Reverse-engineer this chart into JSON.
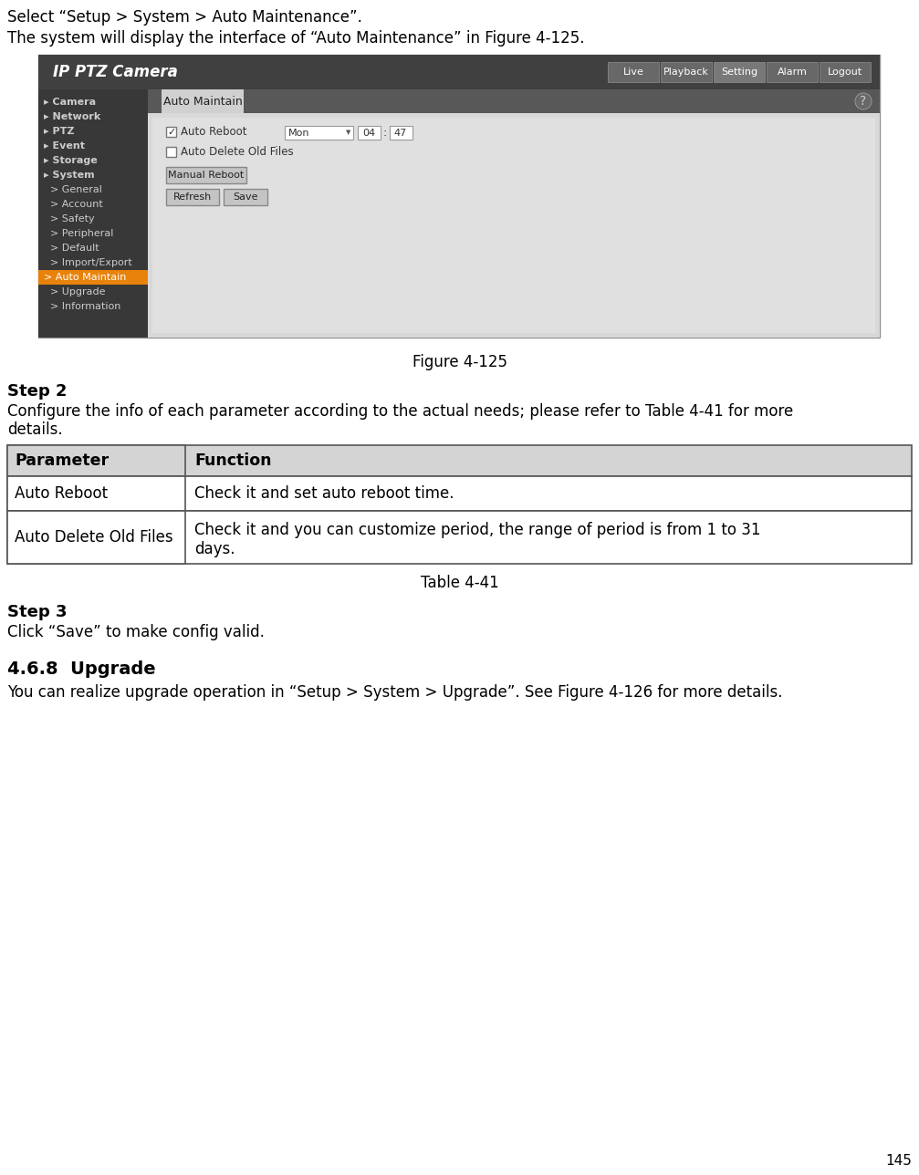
{
  "page_number": "145",
  "bg_color": "#ffffff",
  "line1": "Select “Setup > System > Auto Maintenance”.",
  "line2": "The system will display the interface of “Auto Maintenance” in Figure 4-125.",
  "figure_caption": "Figure 4-125",
  "step2_heading": "Step 2",
  "step2_text1": "Configure the info of each parameter according to the actual needs; please refer to Table 4-41 for more",
  "step2_text2": "details.",
  "table_header": [
    "Parameter",
    "Function"
  ],
  "table_rows": [
    [
      "Auto Reboot",
      "Check it and set auto reboot time."
    ],
    [
      "Auto Delete Old Files",
      "Check it and you can customize period, the range of period is from 1 to 31",
      "days."
    ]
  ],
  "table_caption": "Table 4-41",
  "step3_heading": "Step 3",
  "step3_text": "Click “Save” to make config valid.",
  "section_heading": "4.6.8  Upgrade",
  "section_text": "You can realize upgrade operation in “Setup > System > Upgrade”. See Figure 4-126 for more details.",
  "sc_outer_border": "#a0a8b0",
  "sc_header_bg": "#404040",
  "sc_sidebar_bg": "#383838",
  "sc_content_bg": "#d0d0d0",
  "sc_panel_bg": "#d8d8d8",
  "sc_tabbar_bg": "#585858",
  "sc_tab_active_bg": "#d0d0d0",
  "sc_orange": "#e8820a",
  "logo_text": "IP PTZ Camera",
  "nav_buttons": [
    "Live",
    "Playback",
    "Setting",
    "Alarm",
    "Logout"
  ],
  "sidebar_items": [
    {
      "label": "▸ Camera",
      "bold": true,
      "active": false
    },
    {
      "label": "▸ Network",
      "bold": true,
      "active": false
    },
    {
      "label": "▸ PTZ",
      "bold": true,
      "active": false
    },
    {
      "label": "▸ Event",
      "bold": true,
      "active": false
    },
    {
      "label": "▸ Storage",
      "bold": true,
      "active": false
    },
    {
      "label": "▸ System",
      "bold": true,
      "active": false
    },
    {
      "label": "  > General",
      "bold": false,
      "active": false
    },
    {
      "label": "  > Account",
      "bold": false,
      "active": false
    },
    {
      "label": "  > Safety",
      "bold": false,
      "active": false
    },
    {
      "label": "  > Peripheral",
      "bold": false,
      "active": false
    },
    {
      "label": "  > Default",
      "bold": false,
      "active": false
    },
    {
      "label": "  > Import/Export",
      "bold": false,
      "active": false
    },
    {
      "label": "  > Auto Maintain",
      "bold": false,
      "active": true
    },
    {
      "label": "  > Upgrade",
      "bold": false,
      "active": false
    },
    {
      "label": "  > Information",
      "bold": false,
      "active": false
    }
  ],
  "tab_label": "Auto Maintain",
  "checkbox1_checked": true,
  "checkbox1_label": "Auto Reboot",
  "dropdown_text": "Mon",
  "time1": "04",
  "time2": "47",
  "checkbox2_checked": false,
  "checkbox2_label": "Auto Delete Old Files",
  "btn_manual": "Manual Reboot",
  "btn_refresh": "Refresh",
  "btn_save": "Save"
}
